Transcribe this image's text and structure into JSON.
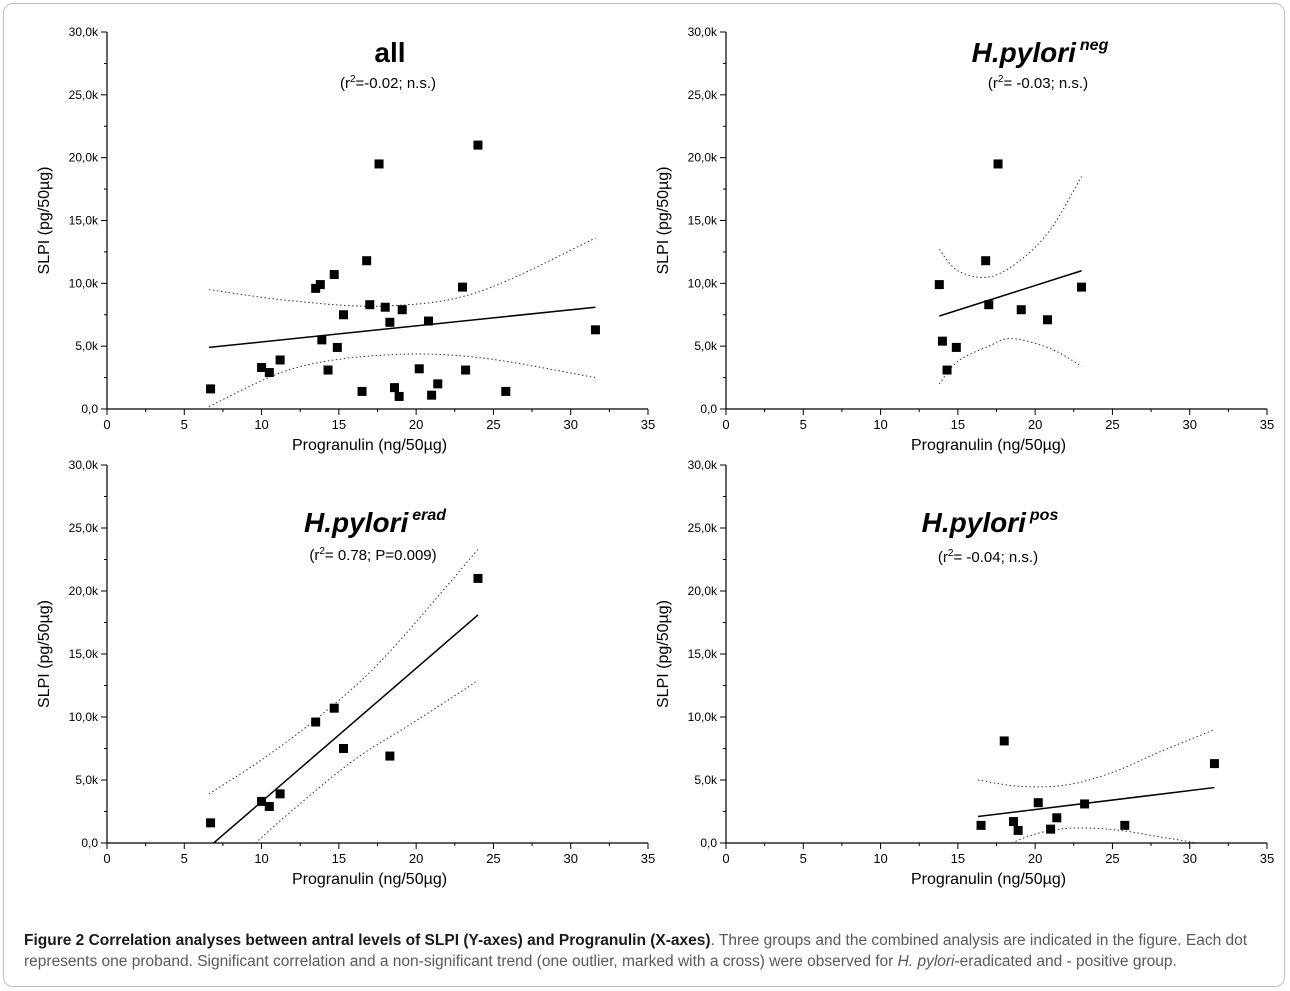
{
  "chart_data": [
    {
      "type": "scatter",
      "panel": "all",
      "title": "all",
      "title_italic": false,
      "title_superscript": "",
      "subtitle_pre": "(r",
      "subtitle_sup": "2",
      "subtitle_post": "=-0.02; n.s.)",
      "xlabel": "Progranulin (ng/50µg)",
      "ylabel": "SLPI (pg/50µg)",
      "xlim": [
        0,
        35
      ],
      "ylim": [
        0,
        30000
      ],
      "x_ticks": [
        "0",
        "5",
        "10",
        "15",
        "20",
        "25",
        "30",
        "35"
      ],
      "y_ticks": [
        "0,0",
        "5,0k",
        "10,0k",
        "15,0k",
        "20,0k",
        "25,0k",
        "30,0k"
      ],
      "points": [
        [
          6.7,
          1600
        ],
        [
          10.0,
          3300
        ],
        [
          10.5,
          2900
        ],
        [
          11.2,
          3900
        ],
        [
          13.5,
          9600
        ],
        [
          13.8,
          9900
        ],
        [
          13.9,
          5500
        ],
        [
          14.3,
          3100
        ],
        [
          14.7,
          10700
        ],
        [
          14.9,
          4900
        ],
        [
          15.3,
          7500
        ],
        [
          16.5,
          1400
        ],
        [
          16.8,
          11800
        ],
        [
          17.0,
          8300
        ],
        [
          17.6,
          19500
        ],
        [
          18.0,
          8100
        ],
        [
          18.3,
          6900
        ],
        [
          18.6,
          1700
        ],
        [
          18.9,
          1000
        ],
        [
          19.1,
          7900
        ],
        [
          20.2,
          3200
        ],
        [
          20.8,
          7000
        ],
        [
          21.0,
          1100
        ],
        [
          21.4,
          2000
        ],
        [
          23.0,
          9700
        ],
        [
          23.2,
          3100
        ],
        [
          24.0,
          21000
        ],
        [
          25.8,
          1400
        ],
        [
          31.6,
          6300
        ]
      ],
      "fit_line": [
        [
          6.6,
          4900
        ],
        [
          31.6,
          8100
        ]
      ],
      "ci_upper": [
        [
          6.6,
          9500
        ],
        [
          12,
          8600
        ],
        [
          18,
          8200
        ],
        [
          24,
          9300
        ],
        [
          31.6,
          13600
        ]
      ],
      "ci_lower": [
        [
          6.6,
          200
        ],
        [
          12,
          3200
        ],
        [
          18,
          4300
        ],
        [
          24,
          4100
        ],
        [
          31.6,
          2500
        ]
      ]
    },
    {
      "type": "scatter",
      "panel": "neg",
      "title": "H.pylori",
      "title_italic": true,
      "title_superscript": "neg",
      "subtitle_pre": "(r",
      "subtitle_sup": "2",
      "subtitle_post": "= -0.03; n.s.)",
      "xlabel": "Progranulin (ng/50µg)",
      "ylabel": "SLPI (pg/50µg)",
      "xlim": [
        0,
        35
      ],
      "ylim": [
        0,
        30000
      ],
      "x_ticks": [
        "0",
        "5",
        "10",
        "15",
        "20",
        "25",
        "30",
        "35"
      ],
      "y_ticks": [
        "0,0",
        "5,0k",
        "10,0k",
        "15,0k",
        "20,0k",
        "25,0k",
        "30,0k"
      ],
      "points": [
        [
          13.8,
          9900
        ],
        [
          14.0,
          5400
        ],
        [
          14.3,
          3100
        ],
        [
          14.9,
          4900
        ],
        [
          16.8,
          11800
        ],
        [
          17.0,
          8300
        ],
        [
          17.6,
          19500
        ],
        [
          19.1,
          7900
        ],
        [
          20.8,
          7100
        ],
        [
          23.0,
          9700
        ]
      ],
      "fit_line": [
        [
          13.8,
          7400
        ],
        [
          23.0,
          11000
        ]
      ],
      "ci_upper": [
        [
          13.8,
          12700
        ],
        [
          15,
          11000
        ],
        [
          17,
          10500
        ],
        [
          19,
          11800
        ],
        [
          21,
          14300
        ],
        [
          23.0,
          18500
        ]
      ],
      "ci_lower": [
        [
          13.8,
          2000
        ],
        [
          15,
          3800
        ],
        [
          17,
          5000
        ],
        [
          18.5,
          5600
        ],
        [
          21,
          4800
        ],
        [
          23.0,
          3400
        ]
      ]
    },
    {
      "type": "scatter",
      "panel": "erad",
      "title": "H.pylori",
      "title_italic": true,
      "title_superscript": "erad",
      "subtitle_pre": "(r",
      "subtitle_sup": "2",
      "subtitle_post": "= 0.78; P=0.009)",
      "xlabel": "Progranulin (ng/50µg)",
      "ylabel": "SLPI (pg/50µg)",
      "xlim": [
        0,
        35
      ],
      "ylim": [
        0,
        30000
      ],
      "x_ticks": [
        "0",
        "5",
        "10",
        "15",
        "20",
        "25",
        "30",
        "35"
      ],
      "y_ticks": [
        "0,0",
        "5,0k",
        "10,0k",
        "15,0k",
        "20,0k",
        "25,0k",
        "30,0k"
      ],
      "points": [
        [
          6.7,
          1600
        ],
        [
          10.0,
          3300
        ],
        [
          10.5,
          2900
        ],
        [
          11.2,
          3900
        ],
        [
          13.5,
          9600
        ],
        [
          14.7,
          10700
        ],
        [
          15.3,
          7500
        ],
        [
          18.3,
          6900
        ],
        [
          24.0,
          21000
        ]
      ],
      "fit_line": [
        [
          6.9,
          0
        ],
        [
          24.0,
          18100
        ]
      ],
      "ci_upper": [
        [
          6.6,
          3900
        ],
        [
          10,
          6600
        ],
        [
          14,
          10300
        ],
        [
          18,
          14800
        ],
        [
          24.0,
          23300
        ]
      ],
      "ci_lower": [
        [
          9.6,
          0
        ],
        [
          12,
          2600
        ],
        [
          16,
          6600
        ],
        [
          20,
          9700
        ],
        [
          24.0,
          12900
        ]
      ]
    },
    {
      "type": "scatter",
      "panel": "pos",
      "title": "H.pylori",
      "title_italic": true,
      "title_superscript": "pos",
      "subtitle_pre": "(r",
      "subtitle_sup": "2",
      "subtitle_post": "= -0.04; n.s.)",
      "xlabel": "Progranulin (ng/50µg)",
      "ylabel": "SLPI (pg/50µg)",
      "xlim": [
        0,
        35
      ],
      "ylim": [
        0,
        30000
      ],
      "x_ticks": [
        "0",
        "5",
        "10",
        "15",
        "20",
        "25",
        "30",
        "35"
      ],
      "y_ticks": [
        "0,0",
        "5,0k",
        "10,0k",
        "15,0k",
        "20,0k",
        "25,0k",
        "30,0k"
      ],
      "points": [
        [
          16.5,
          1400
        ],
        [
          18.0,
          8100
        ],
        [
          18.6,
          1700
        ],
        [
          18.9,
          1000
        ],
        [
          20.2,
          3200
        ],
        [
          21.0,
          1100
        ],
        [
          21.4,
          2000
        ],
        [
          23.2,
          3100
        ],
        [
          25.8,
          1400
        ],
        [
          31.6,
          6300
        ]
      ],
      "fit_line": [
        [
          16.3,
          2100
        ],
        [
          31.6,
          4400
        ]
      ],
      "ci_upper": [
        [
          16.3,
          5000
        ],
        [
          19,
          4500
        ],
        [
          22,
          4600
        ],
        [
          25,
          5600
        ],
        [
          28,
          7200
        ],
        [
          31.6,
          9000
        ]
      ],
      "ci_lower": [
        [
          18.5,
          0
        ],
        [
          19.5,
          500
        ],
        [
          21,
          1000
        ],
        [
          23,
          1200
        ],
        [
          25.5,
          1000
        ],
        [
          28,
          500
        ],
        [
          30.5,
          0
        ]
      ]
    }
  ],
  "caption": {
    "label": "Figure 2 Correlation analyses between antral levels of SLPI (Y-axes) and Progranulin (X-axes)",
    "text_1": ". Three groups and the combined analysis are indicated in the figure. Each dot represents one proband. Significant correlation and a non-significant trend (one outlier, marked with a cross) were observed for ",
    "italic": "H. pylori",
    "text_2": "-eradicated and - positive group."
  }
}
